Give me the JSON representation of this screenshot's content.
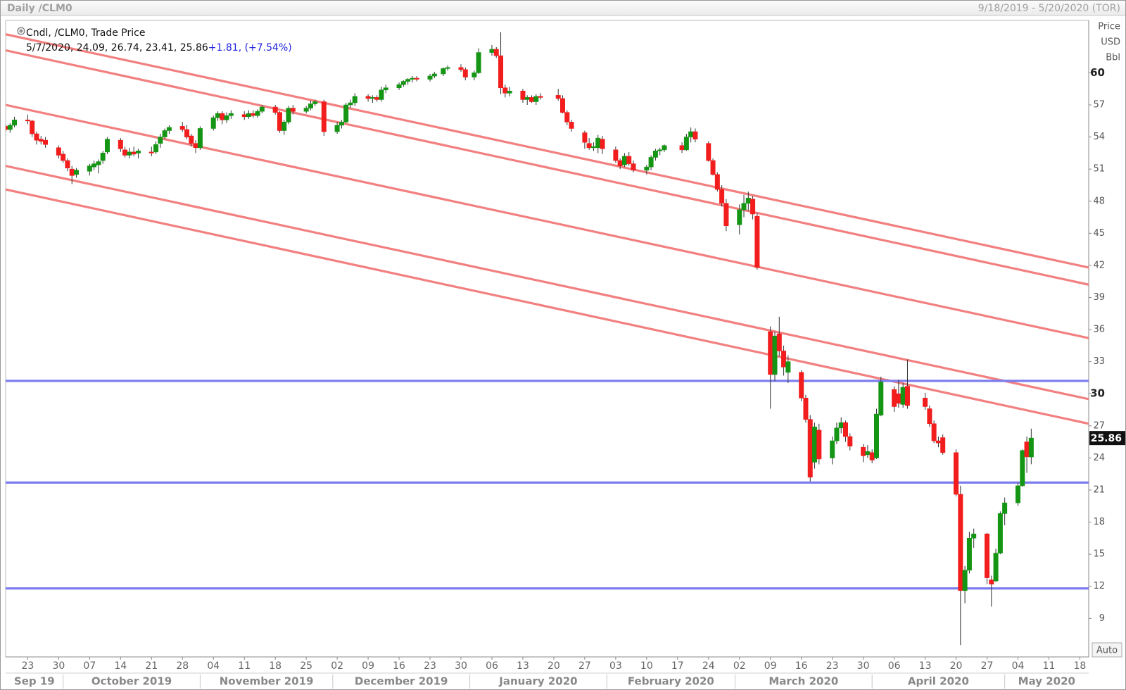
{
  "chart_data": {
    "type": "candlestick",
    "title": "Daily /CLM0",
    "date_range": "9/18/2019 - 5/20/2020 (TOR)",
    "series_name": "Cndl, /CLM0, Trade Price",
    "legend_values": "5/7/2020, 24.09, 26.74, 23.41, 25.86",
    "legend_change": "+1.81, (+7.54%)",
    "ylabel": [
      "Price",
      "USD",
      "Bbl"
    ],
    "up_color": "#149614",
    "down_color": "#f21d1d",
    "wick_color": "#333333",
    "trend_color": "#f28080",
    "level_color": "#7d7df0",
    "xlim": [
      "2019-09-18",
      "2020-05-20"
    ],
    "ylim": [
      5.4,
      64.9
    ],
    "yticks": [
      9,
      12,
      15,
      18,
      21,
      24,
      27,
      30,
      33,
      36,
      39,
      42,
      45,
      48,
      51,
      54,
      57,
      60
    ],
    "bold_yticks": [
      30,
      60
    ],
    "xticks": [
      {
        "value": "2019-09-23",
        "label": "23"
      },
      {
        "value": "2019-09-30",
        "label": "30"
      },
      {
        "value": "2019-10-07",
        "label": "07"
      },
      {
        "value": "2019-10-14",
        "label": "14"
      },
      {
        "value": "2019-10-21",
        "label": "21"
      },
      {
        "value": "2019-10-28",
        "label": "28"
      },
      {
        "value": "2019-11-04",
        "label": "04"
      },
      {
        "value": "2019-11-11",
        "label": "11"
      },
      {
        "value": "2019-11-18",
        "label": "18"
      },
      {
        "value": "2019-11-25",
        "label": "25"
      },
      {
        "value": "2019-12-02",
        "label": "02"
      },
      {
        "value": "2019-12-09",
        "label": "09"
      },
      {
        "value": "2019-12-16",
        "label": "16"
      },
      {
        "value": "2019-12-23",
        "label": "23"
      },
      {
        "value": "2019-12-30",
        "label": "30"
      },
      {
        "value": "2020-01-06",
        "label": "06"
      },
      {
        "value": "2020-01-13",
        "label": "13"
      },
      {
        "value": "2020-01-20",
        "label": "20"
      },
      {
        "value": "2020-01-27",
        "label": "27"
      },
      {
        "value": "2020-02-03",
        "label": "03"
      },
      {
        "value": "2020-02-10",
        "label": "10"
      },
      {
        "value": "2020-02-17",
        "label": "17"
      },
      {
        "value": "2020-02-24",
        "label": "24"
      },
      {
        "value": "2020-03-02",
        "label": "02"
      },
      {
        "value": "2020-03-09",
        "label": "09"
      },
      {
        "value": "2020-03-16",
        "label": "16"
      },
      {
        "value": "2020-03-23",
        "label": "23"
      },
      {
        "value": "2020-03-30",
        "label": "30"
      },
      {
        "value": "2020-04-06",
        "label": "06"
      },
      {
        "value": "2020-04-13",
        "label": "13"
      },
      {
        "value": "2020-04-20",
        "label": "20"
      },
      {
        "value": "2020-04-27",
        "label": "27"
      },
      {
        "value": "2020-05-04",
        "label": "04"
      },
      {
        "value": "2020-05-11",
        "label": "11"
      },
      {
        "value": "2020-05-18",
        "label": "18"
      }
    ],
    "months": [
      {
        "value": "2019-09",
        "label": "Sep 19"
      },
      {
        "value": "2019-10",
        "label": "October 2019"
      },
      {
        "value": "2019-11",
        "label": "November 2019"
      },
      {
        "value": "2019-12",
        "label": "December 2019"
      },
      {
        "value": "2020-01",
        "label": "January 2020"
      },
      {
        "value": "2020-02",
        "label": "February 2020"
      },
      {
        "value": "2020-03",
        "label": "March 2020"
      },
      {
        "value": "2020-04",
        "label": "April 2020"
      },
      {
        "value": "2020-05",
        "label": "May 2020"
      }
    ],
    "x": [
      "2019-09-18",
      "2019-09-19",
      "2019-09-20",
      "2019-09-23",
      "2019-09-24",
      "2019-09-25",
      "2019-09-26",
      "2019-09-27",
      "2019-09-30",
      "2019-10-01",
      "2019-10-02",
      "2019-10-03",
      "2019-10-04",
      "2019-10-07",
      "2019-10-08",
      "2019-10-09",
      "2019-10-10",
      "2019-10-11",
      "2019-10-14",
      "2019-10-15",
      "2019-10-16",
      "2019-10-17",
      "2019-10-18",
      "2019-10-21",
      "2019-10-22",
      "2019-10-23",
      "2019-10-24",
      "2019-10-25",
      "2019-10-28",
      "2019-10-29",
      "2019-10-30",
      "2019-10-31",
      "2019-11-01",
      "2019-11-04",
      "2019-11-05",
      "2019-11-06",
      "2019-11-07",
      "2019-11-08",
      "2019-11-11",
      "2019-11-12",
      "2019-11-13",
      "2019-11-14",
      "2019-11-15",
      "2019-11-18",
      "2019-11-19",
      "2019-11-20",
      "2019-11-21",
      "2019-11-22",
      "2019-11-25",
      "2019-11-26",
      "2019-11-27",
      "2019-11-29",
      "2019-12-02",
      "2019-12-03",
      "2019-12-04",
      "2019-12-05",
      "2019-12-06",
      "2019-12-09",
      "2019-12-10",
      "2019-12-11",
      "2019-12-12",
      "2019-12-13",
      "2019-12-16",
      "2019-12-17",
      "2019-12-18",
      "2019-12-19",
      "2019-12-20",
      "2019-12-23",
      "2019-12-24",
      "2019-12-26",
      "2019-12-27",
      "2019-12-30",
      "2019-12-31",
      "2020-01-02",
      "2020-01-03",
      "2020-01-06",
      "2020-01-07",
      "2020-01-08",
      "2020-01-09",
      "2020-01-10",
      "2020-01-13",
      "2020-01-14",
      "2020-01-15",
      "2020-01-16",
      "2020-01-17",
      "2020-01-21",
      "2020-01-22",
      "2020-01-23",
      "2020-01-24",
      "2020-01-27",
      "2020-01-28",
      "2020-01-29",
      "2020-01-30",
      "2020-01-31",
      "2020-02-03",
      "2020-02-04",
      "2020-02-05",
      "2020-02-06",
      "2020-02-07",
      "2020-02-10",
      "2020-02-11",
      "2020-02-12",
      "2020-02-13",
      "2020-02-14",
      "2020-02-18",
      "2020-02-19",
      "2020-02-20",
      "2020-02-21",
      "2020-02-24",
      "2020-02-25",
      "2020-02-26",
      "2020-02-27",
      "2020-02-28",
      "2020-03-02",
      "2020-03-03",
      "2020-03-04",
      "2020-03-05",
      "2020-03-06",
      "2020-03-09",
      "2020-03-10",
      "2020-03-11",
      "2020-03-12",
      "2020-03-13",
      "2020-03-16",
      "2020-03-17",
      "2020-03-18",
      "2020-03-19",
      "2020-03-20",
      "2020-03-23",
      "2020-03-24",
      "2020-03-25",
      "2020-03-26",
      "2020-03-27",
      "2020-03-30",
      "2020-03-31",
      "2020-04-01",
      "2020-04-02",
      "2020-04-03",
      "2020-04-06",
      "2020-04-07",
      "2020-04-08",
      "2020-04-09",
      "2020-04-13",
      "2020-04-14",
      "2020-04-15",
      "2020-04-16",
      "2020-04-17",
      "2020-04-20",
      "2020-04-21",
      "2020-04-22",
      "2020-04-23",
      "2020-04-24",
      "2020-04-27",
      "2020-04-28",
      "2020-04-29",
      "2020-04-30",
      "2020-05-01",
      "2020-05-04",
      "2020-05-05",
      "2020-05-06",
      "2020-05-07"
    ],
    "open": [
      55.0,
      54.7,
      55.1,
      55.6,
      55.5,
      54.3,
      53.8,
      53.7,
      53.0,
      52.4,
      51.8,
      51.0,
      50.5,
      50.8,
      51.2,
      51.4,
      51.8,
      52.6,
      53.7,
      52.8,
      52.3,
      52.6,
      52.5,
      52.6,
      52.6,
      53.4,
      54.0,
      54.6,
      55.0,
      54.7,
      54.1,
      53.4,
      53.0,
      54.8,
      55.8,
      56.2,
      55.6,
      56.0,
      56.1,
      55.9,
      56.2,
      56.0,
      56.4,
      56.8,
      56.3,
      54.6,
      55.4,
      56.7,
      56.4,
      56.7,
      57.1,
      57.3,
      54.5,
      55.1,
      55.4,
      57.0,
      57.2,
      57.8,
      57.6,
      57.7,
      57.5,
      58.4,
      58.6,
      58.9,
      59.2,
      59.4,
      59.5,
      59.4,
      59.7,
      59.9,
      60.4,
      60.5,
      60.3,
      59.6,
      60.0,
      61.9,
      62.2,
      61.6,
      58.6,
      58.1,
      58.3,
      57.5,
      57.7,
      57.3,
      57.8,
      57.9,
      57.6,
      56.3,
      55.4,
      54.4,
      53.4,
      53.0,
      53.0,
      53.8,
      52.8,
      51.8,
      51.4,
      52.2,
      51.5,
      50.9,
      51.2,
      52.1,
      52.7,
      52.8,
      53.2,
      52.8,
      54.0,
      54.5,
      53.4,
      51.8,
      50.5,
      49.1,
      47.8,
      45.8,
      47.2,
      47.8,
      48.2,
      46.6,
      35.8,
      31.8,
      35.6,
      34.0,
      32.0,
      32.0,
      29.6,
      27.6,
      23.6,
      26.6,
      24.0,
      25.6,
      26.8,
      27.3,
      26.0,
      25.0,
      24.3,
      24.5,
      24.0,
      28.0,
      30.4,
      30.0,
      29.0,
      30.7,
      29.6,
      28.6,
      27.2,
      25.6,
      25.9,
      24.5,
      20.6,
      11.6,
      13.5,
      16.5,
      16.9,
      12.6,
      12.5,
      15.1,
      18.8,
      19.8,
      21.4,
      25.5,
      24.09
    ],
    "high": [
      55.2,
      55.3,
      55.9,
      56.1,
      55.6,
      54.5,
      54.1,
      54.0,
      53.2,
      52.7,
      52.0,
      51.3,
      51.1,
      51.5,
      51.8,
      51.9,
      52.7,
      54.0,
      53.9,
      53.1,
      53.0,
      53.1,
      52.9,
      53.1,
      53.6,
      54.3,
      54.8,
      55.1,
      55.4,
      55.1,
      54.3,
      53.7,
      55.0,
      56.0,
      56.4,
      56.4,
      56.3,
      56.5,
      56.4,
      56.5,
      56.5,
      56.6,
      57.0,
      57.0,
      56.4,
      55.6,
      56.9,
      57.0,
      56.9,
      57.4,
      57.5,
      57.5,
      55.4,
      55.6,
      57.2,
      57.5,
      58.1,
      58.0,
      57.9,
      57.9,
      58.7,
      58.9,
      59.1,
      59.3,
      59.5,
      59.7,
      59.7,
      59.9,
      60.1,
      60.5,
      60.7,
      60.8,
      60.5,
      60.2,
      62.3,
      62.6,
      62.4,
      63.8,
      58.9,
      58.7,
      58.5,
      57.9,
      57.9,
      58.0,
      58.1,
      58.5,
      57.9,
      56.5,
      55.6,
      54.6,
      53.9,
      53.5,
      54.2,
      54.1,
      53.1,
      52.0,
      52.5,
      52.6,
      51.8,
      51.4,
      52.3,
      52.9,
      53.0,
      53.3,
      53.5,
      54.3,
      54.9,
      54.8,
      53.6,
      52.0,
      50.7,
      49.5,
      48.2,
      47.7,
      48.6,
      48.9,
      48.5,
      46.9,
      36.3,
      35.8,
      37.2,
      34.5,
      33.6,
      32.2,
      29.9,
      28.0,
      27.3,
      27.2,
      26.0,
      27.3,
      27.8,
      27.5,
      26.3,
      25.3,
      25.2,
      24.8,
      28.6,
      31.6,
      30.7,
      31.3,
      31.0,
      33.2,
      30.1,
      28.9,
      27.5,
      26.0,
      26.2,
      24.8,
      21.4,
      13.9,
      17.1,
      17.4,
      17.0,
      13.0,
      15.5,
      19.0,
      20.3,
      21.7,
      24.8,
      26.0,
      26.74
    ],
    "low": [
      54.5,
      54.4,
      54.9,
      55.2,
      54.0,
      53.3,
      53.3,
      53.0,
      52.0,
      51.6,
      50.8,
      49.6,
      50.2,
      50.4,
      50.9,
      50.6,
      51.5,
      52.4,
      52.6,
      52.1,
      52.0,
      52.2,
      52.0,
      52.2,
      52.4,
      53.0,
      53.8,
      54.3,
      54.5,
      53.8,
      53.1,
      52.5,
      52.8,
      54.6,
      55.5,
      55.2,
      55.3,
      55.7,
      55.6,
      55.7,
      55.8,
      55.8,
      56.2,
      56.1,
      54.4,
      54.2,
      55.2,
      56.1,
      56.2,
      56.5,
      56.9,
      54.1,
      54.3,
      54.8,
      55.3,
      56.7,
      56.9,
      57.3,
      57.2,
      57.3,
      57.3,
      58.1,
      58.4,
      58.7,
      58.9,
      59.1,
      59.2,
      59.2,
      59.5,
      59.7,
      60.2,
      60.1,
      59.3,
      59.3,
      59.9,
      61.6,
      61.4,
      58.0,
      57.7,
      57.8,
      57.2,
      57.0,
      57.2,
      57.0,
      57.5,
      57.4,
      56.2,
      55.1,
      54.5,
      52.9,
      52.8,
      52.7,
      52.5,
      52.4,
      51.6,
      51.0,
      51.2,
      51.3,
      50.7,
      50.5,
      50.9,
      51.8,
      52.3,
      52.6,
      52.5,
      52.7,
      53.5,
      53.5,
      51.7,
      50.4,
      48.9,
      47.5,
      45.2,
      44.9,
      46.5,
      47.1,
      46.3,
      41.6,
      28.6,
      31.2,
      33.5,
      31.7,
      31.0,
      29.3,
      27.3,
      21.8,
      23.0,
      23.4,
      23.4,
      25.3,
      26.3,
      25.5,
      24.7,
      23.6,
      24.0,
      23.5,
      23.9,
      27.9,
      28.3,
      28.7,
      28.7,
      28.6,
      28.5,
      26.9,
      25.4,
      25.0,
      24.3,
      20.4,
      6.5,
      10.4,
      13.2,
      15.6,
      12.2,
      10.1,
      12.4,
      15.0,
      17.7,
      19.5,
      21.3,
      22.6,
      23.41
    ],
    "close": [
      54.7,
      55.1,
      55.6,
      55.5,
      54.3,
      53.7,
      53.6,
      53.3,
      52.3,
      51.8,
      51.1,
      50.4,
      50.9,
      51.3,
      51.5,
      51.7,
      52.5,
      53.8,
      52.9,
      52.3,
      52.6,
      52.4,
      52.7,
      52.5,
      53.3,
      54.0,
      54.6,
      54.9,
      54.7,
      54.0,
      53.4,
      53.0,
      54.8,
      55.8,
      56.2,
      55.6,
      56.0,
      56.2,
      55.9,
      56.2,
      56.0,
      56.4,
      56.8,
      56.3,
      54.6,
      55.4,
      56.7,
      56.4,
      56.7,
      57.1,
      57.3,
      54.5,
      55.1,
      55.4,
      57.0,
      57.2,
      57.8,
      57.6,
      57.7,
      57.5,
      58.4,
      58.6,
      58.9,
      59.2,
      59.4,
      59.5,
      59.4,
      59.7,
      59.9,
      60.4,
      60.5,
      60.3,
      59.6,
      60.0,
      61.9,
      62.2,
      61.6,
      58.6,
      58.1,
      58.3,
      57.5,
      57.7,
      57.3,
      57.8,
      57.7,
      57.6,
      56.3,
      55.4,
      54.8,
      53.5,
      53.0,
      53.1,
      53.9,
      52.9,
      51.8,
      51.3,
      52.2,
      51.5,
      50.9,
      51.2,
      52.1,
      52.7,
      52.8,
      53.2,
      52.8,
      54.0,
      54.5,
      53.8,
      51.8,
      50.5,
      49.1,
      47.8,
      45.7,
      47.2,
      47.8,
      48.3,
      46.8,
      41.8,
      31.8,
      35.4,
      34.0,
      32.5,
      33.0,
      29.6,
      27.6,
      22.2,
      26.9,
      23.9,
      25.6,
      26.8,
      27.3,
      26.0,
      25.1,
      24.2,
      24.6,
      23.8,
      28.1,
      31.1,
      28.8,
      29.1,
      30.6,
      28.9,
      28.8,
      27.2,
      25.6,
      25.4,
      24.5,
      20.6,
      11.6,
      13.5,
      16.5,
      16.9,
      12.8,
      12.2,
      15.1,
      18.8,
      19.8,
      21.4,
      24.7,
      24.1,
      25.86
    ],
    "levels": [
      31.2,
      21.7,
      11.8
    ],
    "trendlines": [
      {
        "x": [
          "2019-09-18",
          "2020-05-20"
        ],
        "y": [
          63.6,
          41.8
        ]
      },
      {
        "x": [
          "2019-09-18",
          "2020-05-20"
        ],
        "y": [
          62.1,
          40.2
        ]
      },
      {
        "x": [
          "2019-09-18",
          "2020-05-20"
        ],
        "y": [
          57.0,
          35.2
        ]
      },
      {
        "x": [
          "2019-09-18",
          "2020-05-20"
        ],
        "y": [
          51.3,
          29.5
        ]
      },
      {
        "x": [
          "2019-09-18",
          "2020-05-20"
        ],
        "y": [
          49.1,
          27.2
        ]
      }
    ]
  },
  "controls": {
    "auto": "Auto"
  }
}
